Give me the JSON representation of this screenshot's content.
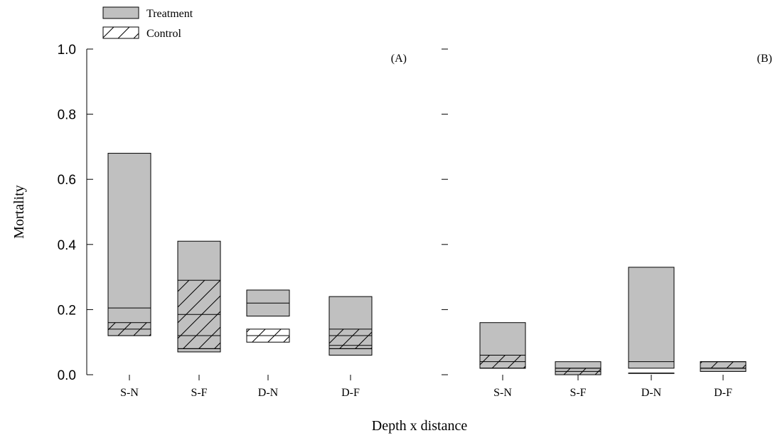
{
  "chart_data": {
    "type": "bar",
    "subtype": "floating box (range) bars",
    "xlabel": "Depth x distance",
    "ylabel": "Mortality",
    "ylim": [
      0,
      1.0
    ],
    "yticks": [
      "0.0",
      "0.2",
      "0.4",
      "0.6",
      "0.8",
      "1.0"
    ],
    "categories": [
      "S-N",
      "S-F",
      "D-N",
      "D-F"
    ],
    "legend": {
      "placement": "top-left",
      "items": [
        {
          "label": "Treatment",
          "fill": "#c0c0c0",
          "pattern": "solid"
        },
        {
          "label": "Control",
          "fill": "none",
          "pattern": "diagonal-hatch"
        }
      ]
    },
    "panels": [
      {
        "label": "(A)",
        "series": [
          {
            "name": "Treatment",
            "boxes": [
              {
                "category": "S-N",
                "low": 0.12,
                "median": 0.205,
                "high": 0.68
              },
              {
                "category": "S-F",
                "low": 0.07,
                "median": 0.08,
                "high": 0.41
              },
              {
                "category": "D-N",
                "low": 0.18,
                "median": 0.22,
                "high": 0.26
              },
              {
                "category": "D-F",
                "low": 0.06,
                "median": 0.08,
                "high": 0.24
              }
            ]
          },
          {
            "name": "Control",
            "boxes": [
              {
                "category": "S-N",
                "low": 0.12,
                "median": 0.14,
                "high": 0.16
              },
              {
                "category": "S-F",
                "low": 0.08,
                "median": 0.12,
                "high": 0.29,
                "extra_lines": [
                  0.185
                ]
              },
              {
                "category": "D-N",
                "low": 0.1,
                "median": 0.12,
                "high": 0.14
              },
              {
                "category": "D-F",
                "low": 0.08,
                "median": 0.12,
                "high": 0.14,
                "extra_lines": [
                  0.09
                ]
              }
            ]
          }
        ]
      },
      {
        "label": "(B)",
        "series": [
          {
            "name": "Treatment",
            "boxes": [
              {
                "category": "S-N",
                "low": 0.02,
                "median": 0.02,
                "high": 0.16
              },
              {
                "category": "S-F",
                "low": 0.0,
                "median": 0.02,
                "high": 0.04
              },
              {
                "category": "D-N",
                "low": 0.02,
                "median": 0.04,
                "high": 0.33
              },
              {
                "category": "D-F",
                "low": 0.01,
                "median": 0.02,
                "high": 0.04
              }
            ]
          },
          {
            "name": "Control",
            "boxes": [
              {
                "category": "S-N",
                "low": 0.02,
                "median": 0.04,
                "high": 0.06
              },
              {
                "category": "S-F",
                "low": 0.0,
                "median": 0.01,
                "high": 0.02
              },
              {
                "category": "D-N",
                "low": 0.005,
                "median": 0.005,
                "high": 0.005
              },
              {
                "category": "D-F",
                "low": 0.02,
                "median": 0.02,
                "high": 0.04
              }
            ]
          }
        ]
      }
    ]
  }
}
